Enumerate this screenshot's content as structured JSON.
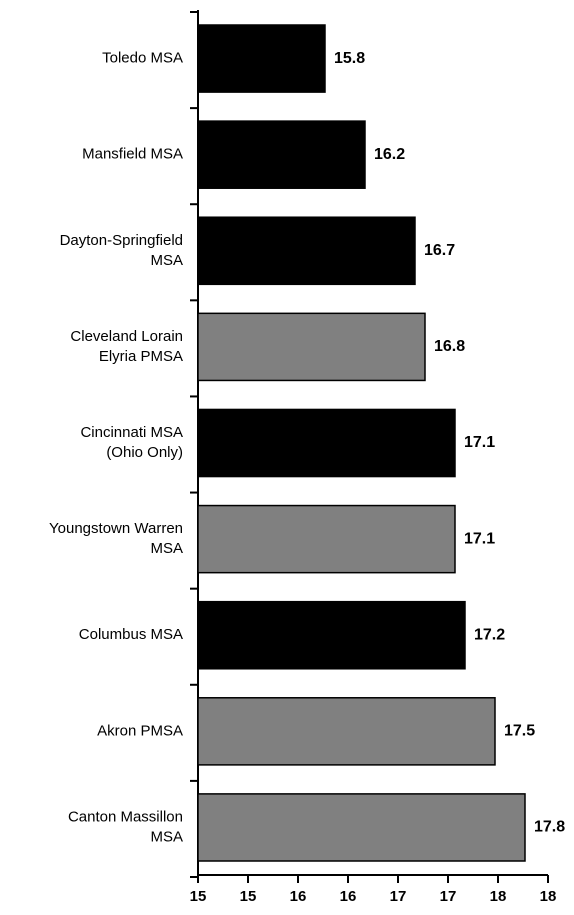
{
  "chart_data": {
    "type": "barh",
    "categories": [
      [
        "Toledo MSA"
      ],
      [
        "Mansfield MSA"
      ],
      [
        "Dayton-Springfield",
        "MSA"
      ],
      [
        "Cleveland Lorain",
        "Elyria PMSA"
      ],
      [
        "Cincinnati MSA",
        "(Ohio Only)"
      ],
      [
        "Youngstown Warren",
        "MSA"
      ],
      [
        "Columbus MSA"
      ],
      [
        "Akron PMSA"
      ],
      [
        "Canton Massillon",
        "MSA"
      ]
    ],
    "values": [
      15.8,
      16.2,
      16.7,
      16.8,
      17.1,
      17.1,
      17.2,
      17.5,
      17.8
    ],
    "colors": [
      "#000000",
      "#000000",
      "#000000",
      "#808080",
      "#000000",
      "#808080",
      "#000000",
      "#808080",
      "#808080"
    ],
    "xlim": [
      14.53,
      18.29
    ],
    "xticks": [
      {
        "value": 14.53,
        "label": "15"
      },
      {
        "value": 15.03,
        "label": "15"
      },
      {
        "value": 15.53,
        "label": "16"
      },
      {
        "value": 16.03,
        "label": "16"
      },
      {
        "value": 16.53,
        "label": "17"
      },
      {
        "value": 17.03,
        "label": "17"
      },
      {
        "value": 17.53,
        "label": "18"
      },
      {
        "value": 18.03,
        "label": "18"
      }
    ]
  }
}
